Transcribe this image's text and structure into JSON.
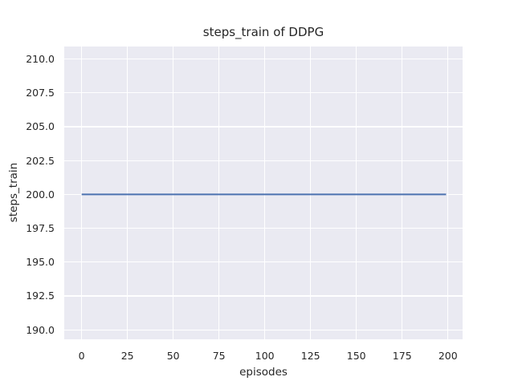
{
  "chart_data": {
    "type": "line",
    "title": "steps_train of DDPG",
    "xlabel": "episodes",
    "ylabel": "steps_train",
    "xlim": [
      -9.5,
      208.0
    ],
    "ylim": [
      189.3,
      210.92
    ],
    "grid": true,
    "legend": null,
    "xticks": {
      "values": [
        0,
        25,
        50,
        75,
        100,
        125,
        150,
        175,
        200
      ],
      "labels": [
        "0",
        "25",
        "50",
        "75",
        "100",
        "125",
        "150",
        "175",
        "200"
      ]
    },
    "yticks": {
      "values": [
        190.0,
        192.5,
        195.0,
        197.5,
        200.0,
        202.5,
        205.0,
        207.5,
        210.0
      ],
      "labels": [
        "190.0",
        "192.5",
        "195.0",
        "197.5",
        "200.0",
        "202.5",
        "205.0",
        "207.5",
        "210.0"
      ]
    },
    "series": [
      {
        "name": "steps_train",
        "color": "#4c72b0",
        "line_width": 2,
        "x": [
          0,
          199
        ],
        "y": [
          200,
          200
        ]
      }
    ],
    "style": {
      "axes_background": "#eaeaf2",
      "grid_color": "#ffffff",
      "text_color": "#262626",
      "figure_background": "#ffffff"
    }
  }
}
